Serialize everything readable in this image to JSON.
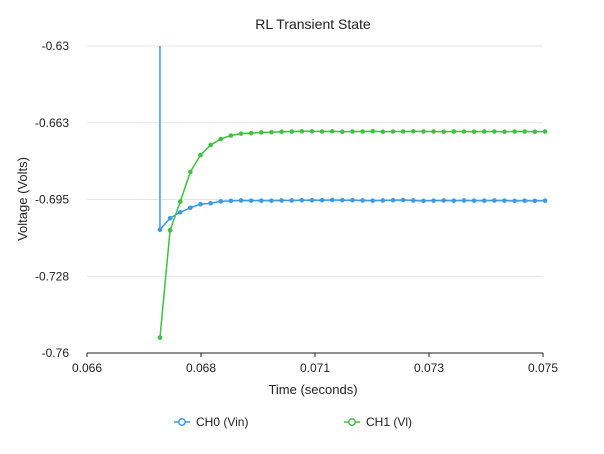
{
  "chart_data": {
    "type": "line",
    "title": "RL Transient State",
    "xlabel": "Time (seconds)",
    "ylabel": "Voltage (Volts)",
    "xlim": [
      0.066,
      0.075
    ],
    "ylim": [
      -0.76,
      -0.63
    ],
    "x_ticks": [
      "0.066",
      "0.068",
      "0.071",
      "0.073",
      "0.075"
    ],
    "y_ticks": [
      "-0.63",
      "-0.663",
      "-0.695",
      "-0.728",
      "-0.76"
    ],
    "x_tick_values": [
      0.066,
      0.06825,
      0.0705,
      0.07275,
      0.075
    ],
    "y_tick_values": [
      -0.63,
      -0.6625,
      -0.695,
      -0.7275,
      -0.76
    ],
    "grid": true,
    "legend_position": "bottom",
    "series": [
      {
        "name": "CH0 (Vin)",
        "color": "#3a9ae6",
        "spike_from": -0.63,
        "x": [
          0.06744,
          0.06764,
          0.06784,
          0.06804,
          0.06824,
          0.06844,
          0.06864,
          0.06884,
          0.06904,
          0.06924,
          0.06944,
          0.06964,
          0.06984,
          0.07004,
          0.07024,
          0.07044,
          0.07064,
          0.07084,
          0.07104,
          0.07124,
          0.07144,
          0.07164,
          0.07184,
          0.07204,
          0.07224,
          0.07244,
          0.07264,
          0.07284,
          0.07304,
          0.07324,
          0.07344,
          0.07364,
          0.07384,
          0.07404,
          0.07424,
          0.07444,
          0.07464,
          0.07484,
          0.07504
        ],
        "y": [
          -0.7078,
          -0.7029,
          -0.7004,
          -0.6985,
          -0.697,
          -0.6966,
          -0.6958,
          -0.6956,
          -0.6954,
          -0.6955,
          -0.6955,
          -0.6955,
          -0.6954,
          -0.6954,
          -0.6953,
          -0.6953,
          -0.6953,
          -0.6952,
          -0.6953,
          -0.6953,
          -0.6954,
          -0.6955,
          -0.6954,
          -0.6953,
          -0.6952,
          -0.6954,
          -0.6956,
          -0.6955,
          -0.6954,
          -0.6955,
          -0.6954,
          -0.6955,
          -0.6955,
          -0.6954,
          -0.6955,
          -0.6956,
          -0.6955,
          -0.6956,
          -0.6955
        ]
      },
      {
        "name": "CH1 (Vl)",
        "color": "#3dc23d",
        "x": [
          0.06744,
          0.06764,
          0.06784,
          0.06804,
          0.06824,
          0.06844,
          0.06864,
          0.06884,
          0.06904,
          0.06924,
          0.06944,
          0.06964,
          0.06984,
          0.07004,
          0.07024,
          0.07044,
          0.07064,
          0.07084,
          0.07104,
          0.07124,
          0.07144,
          0.07164,
          0.07184,
          0.07204,
          0.07224,
          0.07244,
          0.07264,
          0.07284,
          0.07304,
          0.07324,
          0.07344,
          0.07364,
          0.07384,
          0.07404,
          0.07424,
          0.07444,
          0.07464,
          0.07484,
          0.07504
        ],
        "y": [
          -0.7535,
          -0.708,
          -0.6959,
          -0.6833,
          -0.6762,
          -0.6719,
          -0.6694,
          -0.6679,
          -0.6671,
          -0.6669,
          -0.6666,
          -0.6665,
          -0.6663,
          -0.6662,
          -0.6661,
          -0.6661,
          -0.6662,
          -0.6661,
          -0.6663,
          -0.6662,
          -0.6662,
          -0.6661,
          -0.6663,
          -0.6662,
          -0.6662,
          -0.6661,
          -0.6662,
          -0.6662,
          -0.6663,
          -0.6662,
          -0.6662,
          -0.6663,
          -0.6662,
          -0.6662,
          -0.6663,
          -0.6662,
          -0.6662,
          -0.6663,
          -0.6662
        ]
      }
    ]
  }
}
